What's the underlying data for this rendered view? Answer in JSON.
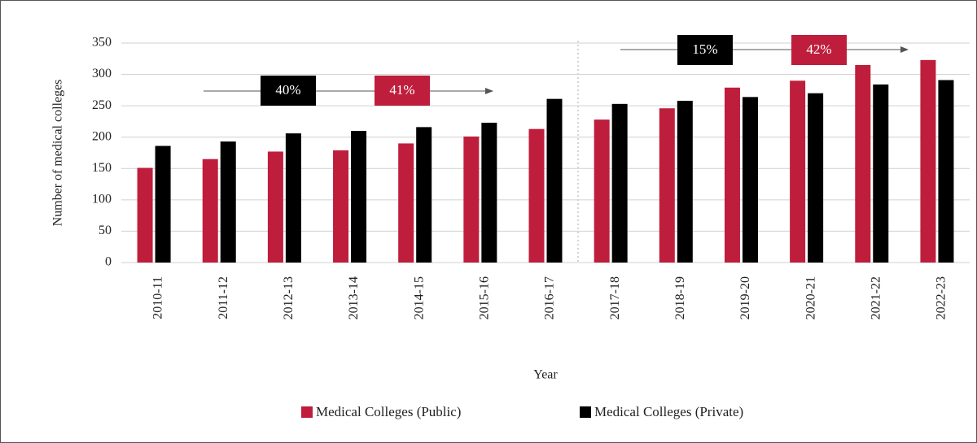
{
  "chart_data": {
    "type": "bar",
    "x_label": "Year",
    "y_label": "Number of medical colleges",
    "categories": [
      "2010-11",
      "2011-12",
      "2012-13",
      "2013-14",
      "2014-15",
      "2015-16",
      "2016-17",
      "2017-18",
      "2018-19",
      "2019-20",
      "2020-21",
      "2021-22",
      "2022-23"
    ],
    "series": [
      {
        "name": "Medical Colleges (Public)",
        "color": "#be1e3c",
        "values": [
          151,
          165,
          177,
          179,
          190,
          201,
          213,
          228,
          246,
          279,
          290,
          315,
          323
        ]
      },
      {
        "name": "Medical Colleges (Private)",
        "color": "#000000",
        "values": [
          186,
          193,
          206,
          210,
          216,
          223,
          261,
          253,
          258,
          264,
          270,
          284,
          291
        ]
      }
    ],
    "ylim": [
      0,
      350
    ],
    "yticks": [
      0,
      50,
      100,
      150,
      200,
      250,
      300,
      350
    ],
    "grid": true,
    "legend": "bottom",
    "annotations": [
      "40%",
      "41%",
      "15%",
      "42%"
    ]
  }
}
